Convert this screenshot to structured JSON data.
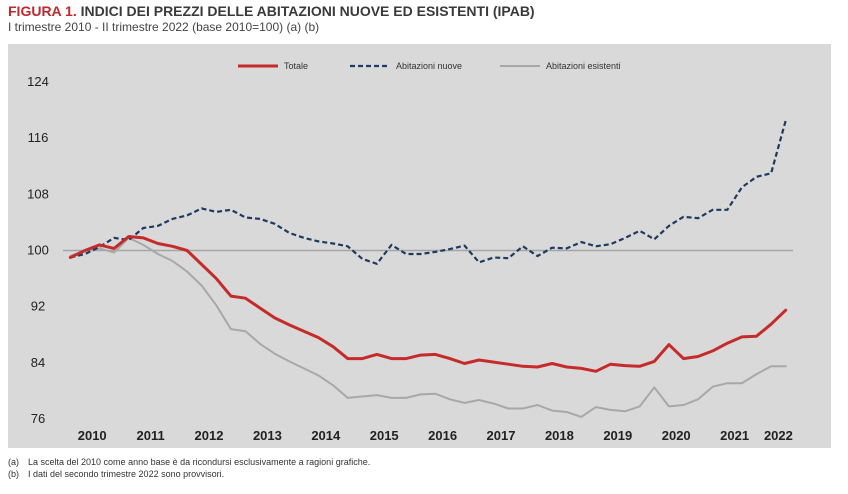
{
  "figure": {
    "label": "FIGURA 1.",
    "title": "INDICI DEI PREZZI DELLE ABITAZIONI NUOVE ED ESISTENTI (IPAB)",
    "subtitle": "I trimestre 2010 - II trimestre 2022 (base 2010=100) (a) (b)"
  },
  "notes": [
    {
      "label": "(a)",
      "text": "La scelta del 2010 come anno base è da ricondursi esclusivamente a ragioni grafiche."
    },
    {
      "label": "(b)",
      "text": "I dati del secondo trimestre 2022 sono provvisori."
    }
  ],
  "chart_data": {
    "type": "line",
    "title": "INDICI DEI PREZZI DELLE ABITAZIONI NUOVE ED ESISTENTI (IPAB)",
    "xlabel": "",
    "ylabel": "",
    "ylim": [
      76,
      124
    ],
    "yticks": [
      76,
      84,
      92,
      100,
      108,
      116,
      124
    ],
    "year_labels": [
      "2010",
      "2011",
      "2012",
      "2013",
      "2014",
      "2015",
      "2016",
      "2017",
      "2018",
      "2019",
      "2020",
      "2021",
      "2022"
    ],
    "x": [
      "2010 T1",
      "2010 T2",
      "2010 T3",
      "2010 T4",
      "2011 T1",
      "2011 T2",
      "2011 T3",
      "2011 T4",
      "2012 T1",
      "2012 T2",
      "2012 T3",
      "2012 T4",
      "2013 T1",
      "2013 T2",
      "2013 T3",
      "2013 T4",
      "2014 T1",
      "2014 T2",
      "2014 T3",
      "2014 T4",
      "2015 T1",
      "2015 T2",
      "2015 T3",
      "2015 T4",
      "2016 T1",
      "2016 T2",
      "2016 T3",
      "2016 T4",
      "2017 T1",
      "2017 T2",
      "2017 T3",
      "2017 T4",
      "2018 T1",
      "2018 T2",
      "2018 T3",
      "2018 T4",
      "2019 T1",
      "2019 T2",
      "2019 T3",
      "2019 T4",
      "2020 T1",
      "2020 T2",
      "2020 T3",
      "2020 T4",
      "2021 T1",
      "2021 T2",
      "2021 T3",
      "2021 T4",
      "2022 T1",
      "2022 T2"
    ],
    "reference_line": 100,
    "grid": false,
    "legend_position": "top",
    "series": [
      {
        "name": "Totale",
        "color": "#c62b2b",
        "style": "solid",
        "values": [
          99.0,
          100.0,
          100.8,
          100.3,
          102.0,
          101.8,
          101.0,
          100.6,
          100.0,
          98.0,
          96.0,
          93.5,
          93.2,
          91.8,
          90.4,
          89.4,
          88.5,
          87.6,
          86.3,
          84.6,
          84.6,
          85.2,
          84.6,
          84.6,
          85.1,
          85.2,
          84.6,
          83.9,
          84.4,
          84.1,
          83.8,
          83.5,
          83.4,
          83.9,
          83.4,
          83.2,
          82.8,
          83.8,
          83.6,
          83.5,
          84.2,
          86.6,
          84.6,
          84.9,
          85.7,
          86.8,
          87.7,
          87.8,
          89.5,
          91.5
        ]
      },
      {
        "name": "Abitazioni nuove",
        "color": "#1f3a5f",
        "style": "dashed",
        "values": [
          99.0,
          99.5,
          100.5,
          101.8,
          101.5,
          103.2,
          103.5,
          104.5,
          105.0,
          106.0,
          105.5,
          105.8,
          104.7,
          104.5,
          103.8,
          102.5,
          101.8,
          101.3,
          101.0,
          100.6,
          98.8,
          98.1,
          100.8,
          99.5,
          99.5,
          99.8,
          100.2,
          100.7,
          98.3,
          99.0,
          98.9,
          100.6,
          99.2,
          100.4,
          100.3,
          101.2,
          100.6,
          100.9,
          101.8,
          102.8,
          101.6,
          103.5,
          104.8,
          104.6,
          105.8,
          105.8,
          109.0,
          110.5,
          111.0,
          118.5
        ]
      },
      {
        "name": "Abitazioni esistenti",
        "color": "#a8a8a8",
        "style": "solid",
        "values": [
          99.2,
          100.0,
          100.3,
          99.7,
          101.8,
          100.8,
          99.5,
          98.5,
          97.0,
          95.0,
          92.2,
          88.8,
          88.5,
          86.7,
          85.3,
          84.2,
          83.2,
          82.2,
          80.8,
          79.0,
          79.2,
          79.4,
          79.0,
          79.0,
          79.5,
          79.6,
          78.8,
          78.3,
          78.7,
          78.2,
          77.5,
          77.5,
          78.0,
          77.2,
          77.0,
          76.3,
          77.7,
          77.3,
          77.1,
          77.8,
          80.5,
          77.8,
          78.0,
          78.8,
          80.6,
          81.1,
          81.1,
          82.4,
          83.5,
          83.5
        ]
      }
    ]
  }
}
